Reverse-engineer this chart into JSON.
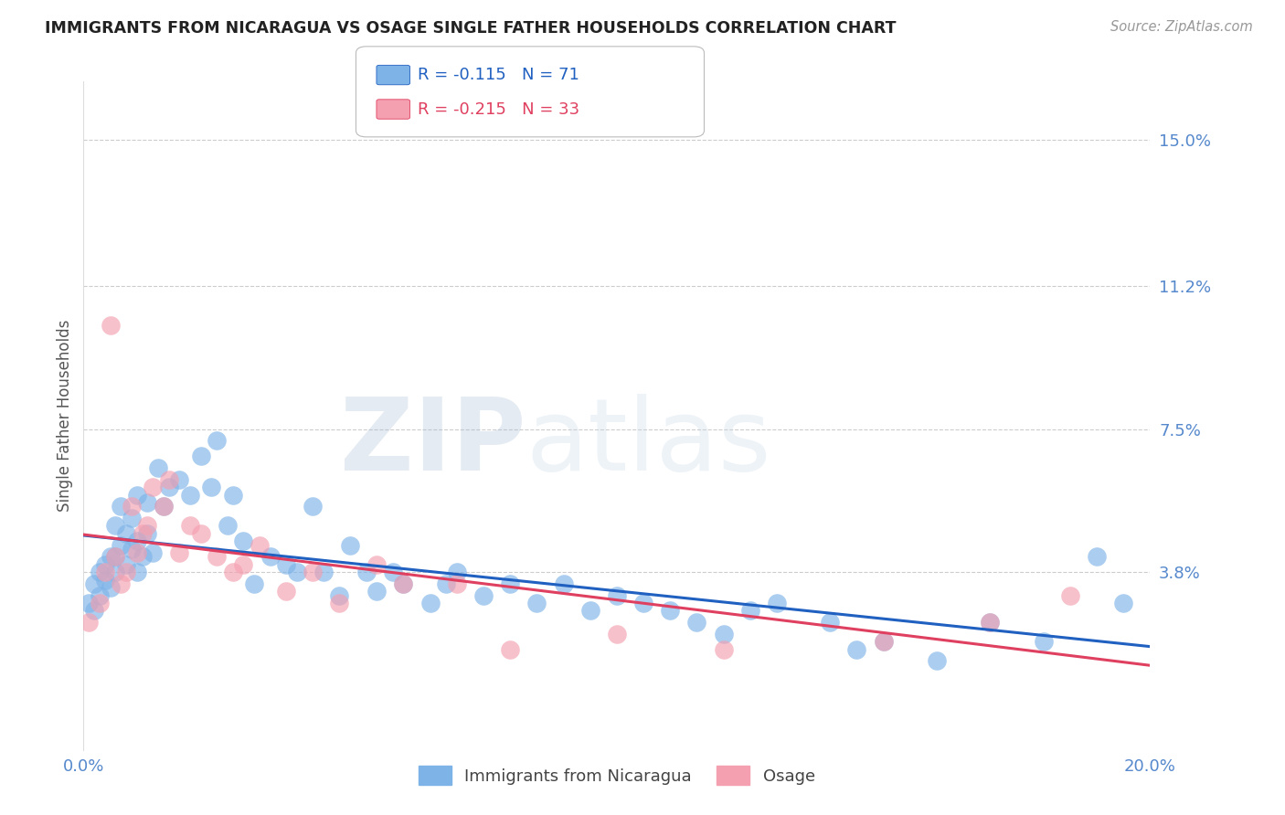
{
  "title": "IMMIGRANTS FROM NICARAGUA VS OSAGE SINGLE FATHER HOUSEHOLDS CORRELATION CHART",
  "source": "Source: ZipAtlas.com",
  "ylabel": "Single Father Households",
  "xlim": [
    0.0,
    0.2
  ],
  "ylim": [
    -0.008,
    0.165
  ],
  "yticks": [
    0.038,
    0.075,
    0.112,
    0.15
  ],
  "ytick_labels": [
    "3.8%",
    "7.5%",
    "11.2%",
    "15.0%"
  ],
  "xticks": [
    0.0,
    0.05,
    0.1,
    0.15,
    0.2
  ],
  "xtick_labels": [
    "0.0%",
    "",
    "",
    "",
    "20.0%"
  ],
  "blue_R": -0.115,
  "blue_N": 71,
  "pink_R": -0.215,
  "pink_N": 33,
  "blue_color": "#7EB3E8",
  "pink_color": "#F4A0B0",
  "blue_line_color": "#2060C0",
  "pink_line_color": "#E04060",
  "legend_label_blue": "Immigrants from Nicaragua",
  "legend_label_pink": "Osage",
  "watermark_zip": "ZIP",
  "watermark_atlas": "atlas",
  "background_color": "#FFFFFF",
  "grid_color": "#CCCCCC",
  "title_color": "#222222",
  "axis_label_color": "#555555",
  "tick_color": "#5588CC",
  "blue_x": [
    0.001,
    0.002,
    0.002,
    0.003,
    0.003,
    0.004,
    0.004,
    0.005,
    0.005,
    0.006,
    0.006,
    0.006,
    0.007,
    0.007,
    0.008,
    0.008,
    0.009,
    0.009,
    0.01,
    0.01,
    0.01,
    0.011,
    0.012,
    0.012,
    0.013,
    0.014,
    0.015,
    0.016,
    0.018,
    0.02,
    0.022,
    0.024,
    0.025,
    0.027,
    0.028,
    0.03,
    0.032,
    0.035,
    0.038,
    0.04,
    0.043,
    0.045,
    0.048,
    0.05,
    0.053,
    0.055,
    0.058,
    0.06,
    0.065,
    0.068,
    0.07,
    0.075,
    0.08,
    0.085,
    0.09,
    0.095,
    0.1,
    0.105,
    0.11,
    0.115,
    0.12,
    0.125,
    0.13,
    0.14,
    0.145,
    0.15,
    0.16,
    0.17,
    0.18,
    0.19,
    0.195
  ],
  "blue_y": [
    0.03,
    0.028,
    0.035,
    0.032,
    0.038,
    0.036,
    0.04,
    0.034,
    0.042,
    0.038,
    0.042,
    0.05,
    0.045,
    0.055,
    0.04,
    0.048,
    0.044,
    0.052,
    0.038,
    0.046,
    0.058,
    0.042,
    0.048,
    0.056,
    0.043,
    0.065,
    0.055,
    0.06,
    0.062,
    0.058,
    0.068,
    0.06,
    0.072,
    0.05,
    0.058,
    0.046,
    0.035,
    0.042,
    0.04,
    0.038,
    0.055,
    0.038,
    0.032,
    0.045,
    0.038,
    0.033,
    0.038,
    0.035,
    0.03,
    0.035,
    0.038,
    0.032,
    0.035,
    0.03,
    0.035,
    0.028,
    0.032,
    0.03,
    0.028,
    0.025,
    0.022,
    0.028,
    0.03,
    0.025,
    0.018,
    0.02,
    0.015,
    0.025,
    0.02,
    0.042,
    0.03
  ],
  "pink_x": [
    0.001,
    0.003,
    0.004,
    0.005,
    0.006,
    0.007,
    0.008,
    0.009,
    0.01,
    0.011,
    0.012,
    0.013,
    0.015,
    0.016,
    0.018,
    0.02,
    0.022,
    0.025,
    0.028,
    0.03,
    0.033,
    0.038,
    0.043,
    0.048,
    0.055,
    0.06,
    0.07,
    0.08,
    0.1,
    0.12,
    0.15,
    0.17,
    0.185
  ],
  "pink_y": [
    0.025,
    0.03,
    0.038,
    0.102,
    0.042,
    0.035,
    0.038,
    0.055,
    0.043,
    0.048,
    0.05,
    0.06,
    0.055,
    0.062,
    0.043,
    0.05,
    0.048,
    0.042,
    0.038,
    0.04,
    0.045,
    0.033,
    0.038,
    0.03,
    0.04,
    0.035,
    0.035,
    0.018,
    0.022,
    0.018,
    0.02,
    0.025,
    0.032
  ]
}
